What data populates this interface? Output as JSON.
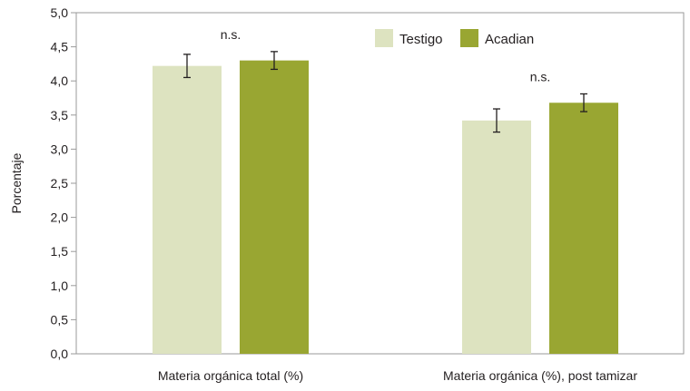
{
  "chart_data": {
    "type": "bar",
    "categories": [
      "Materia orgánica total (%)",
      "Materia orgánica (%), post tamizar"
    ],
    "series": [
      {
        "name": "Testigo",
        "color": "#dde3c0",
        "values": [
          4.22,
          3.42
        ],
        "errors": [
          0.17,
          0.17
        ]
      },
      {
        "name": "Acadian",
        "color": "#99a632",
        "values": [
          4.3,
          3.68
        ],
        "errors": [
          0.13,
          0.13
        ]
      }
    ],
    "annotations": [
      "n.s.",
      "n.s."
    ],
    "ylabel": "Porcentaje",
    "xlabel": "",
    "ylim": [
      0,
      5
    ],
    "yticks": [
      "0,0",
      "0,5",
      "1,0",
      "1,5",
      "2,0",
      "2,5",
      "3,0",
      "3,5",
      "4,0",
      "4,5",
      "5,0"
    ],
    "grid": false,
    "legend_position": "top-right"
  }
}
